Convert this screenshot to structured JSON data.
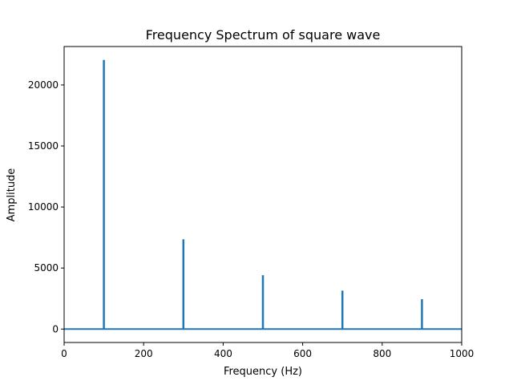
{
  "chart_data": {
    "type": "line",
    "title": "Frequency Spectrum of square wave",
    "xlabel": "Frequency (Hz)",
    "ylabel": "Amplitude",
    "xlim": [
      0,
      1000
    ],
    "ylim": [
      -1100,
      23150
    ],
    "x_ticks": [
      0,
      200,
      400,
      600,
      800,
      1000
    ],
    "y_ticks": [
      0,
      5000,
      10000,
      15000,
      20000
    ],
    "grid": false,
    "color": "#1f77b4",
    "peaks": [
      {
        "x": 100,
        "y": 22050
      },
      {
        "x": 300,
        "y": 7350
      },
      {
        "x": 500,
        "y": 4410
      },
      {
        "x": 700,
        "y": 3150
      },
      {
        "x": 900,
        "y": 2450
      }
    ],
    "baseline": 0
  }
}
